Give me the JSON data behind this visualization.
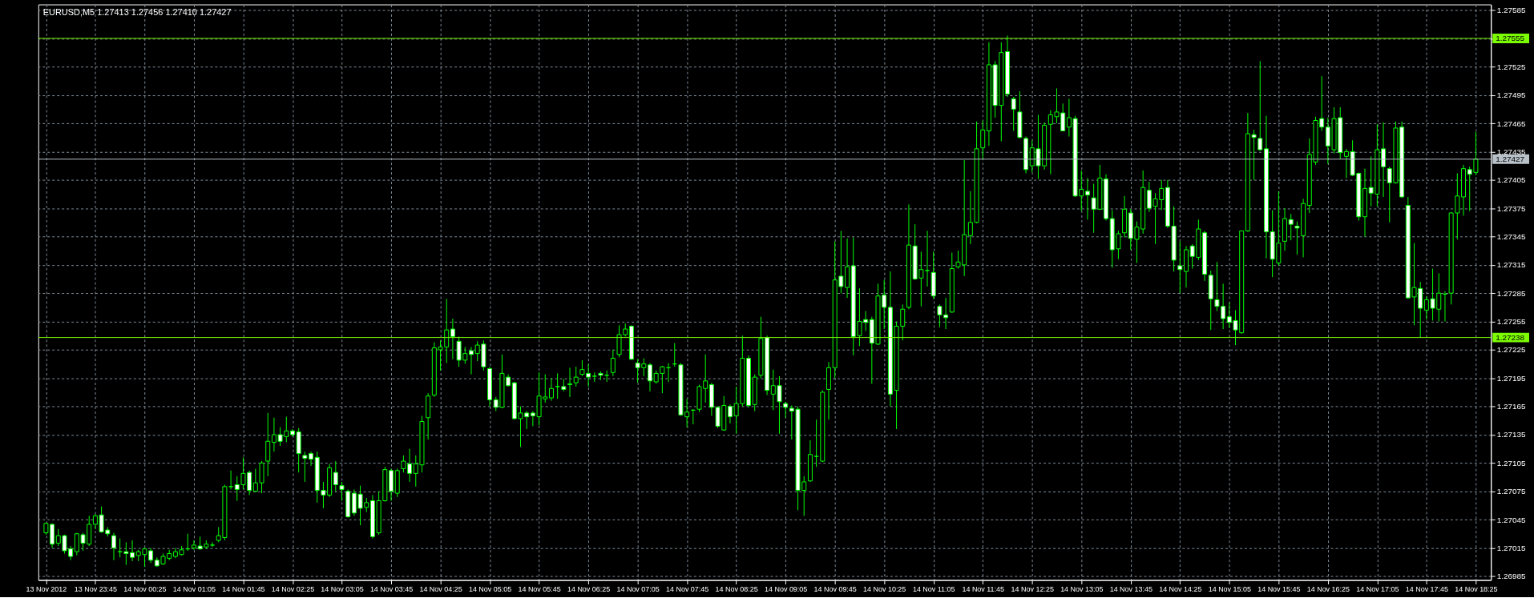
{
  "chart_data": {
    "type": "candlestick",
    "title": "EURUSD,M5 1.27413 1.27456 1.27410 1.27427",
    "x": [
      "2012-11-13T23:05",
      "2012-11-13T23:10",
      "2012-11-13T23:15",
      "2012-11-13T23:20",
      "2012-11-13T23:25",
      "2012-11-13T23:30",
      "2012-11-13T23:35",
      "2012-11-13T23:40",
      "2012-11-13T23:45",
      "2012-11-13T23:50",
      "2012-11-13T23:55",
      "2012-11-14T00:00",
      "2012-11-14T00:05",
      "2012-11-14T00:10",
      "2012-11-14T00:15",
      "2012-11-14T00:20",
      "2012-11-14T00:25",
      "2012-11-14T00:30",
      "2012-11-14T00:35",
      "2012-11-14T00:40",
      "2012-11-14T00:45",
      "2012-11-14T00:50",
      "2012-11-14T00:55",
      "2012-11-14T01:00",
      "2012-11-14T01:05",
      "2012-11-14T01:10",
      "2012-11-14T01:15",
      "2012-11-14T01:20",
      "2012-11-14T01:25",
      "2012-11-14T01:30",
      "2012-11-14T01:35",
      "2012-11-14T01:40",
      "2012-11-14T01:45",
      "2012-11-14T01:50",
      "2012-11-14T01:55",
      "2012-11-14T02:00",
      "2012-11-14T02:05",
      "2012-11-14T02:10",
      "2012-11-14T02:15",
      "2012-11-14T02:20",
      "2012-11-14T02:25",
      "2012-11-14T02:30",
      "2012-11-14T02:35",
      "2012-11-14T02:40",
      "2012-11-14T02:45",
      "2012-11-14T02:50",
      "2012-11-14T02:55",
      "2012-11-14T03:00",
      "2012-11-14T03:05",
      "2012-11-14T03:10",
      "2012-11-14T03:15",
      "2012-11-14T03:20",
      "2012-11-14T03:25",
      "2012-11-14T03:30",
      "2012-11-14T03:35",
      "2012-11-14T03:40",
      "2012-11-14T03:45",
      "2012-11-14T03:50",
      "2012-11-14T03:55",
      "2012-11-14T04:00",
      "2012-11-14T04:05",
      "2012-11-14T04:10",
      "2012-11-14T04:15",
      "2012-11-14T04:20",
      "2012-11-14T04:25",
      "2012-11-14T04:30",
      "2012-11-14T04:35",
      "2012-11-14T04:40",
      "2012-11-14T04:45",
      "2012-11-14T04:50",
      "2012-11-14T04:55",
      "2012-11-14T05:00",
      "2012-11-14T05:05",
      "2012-11-14T05:10",
      "2012-11-14T05:15",
      "2012-11-14T05:20",
      "2012-11-14T05:25",
      "2012-11-14T05:30",
      "2012-11-14T05:35",
      "2012-11-14T05:40",
      "2012-11-14T05:45",
      "2012-11-14T05:50",
      "2012-11-14T05:55",
      "2012-11-14T06:00",
      "2012-11-14T06:05",
      "2012-11-14T06:10",
      "2012-11-14T06:15",
      "2012-11-14T06:20",
      "2012-11-14T06:25",
      "2012-11-14T06:30",
      "2012-11-14T06:35",
      "2012-11-14T06:40",
      "2012-11-14T06:45",
      "2012-11-14T06:50",
      "2012-11-14T06:55",
      "2012-11-14T07:00",
      "2012-11-14T07:05",
      "2012-11-14T07:10",
      "2012-11-14T07:15",
      "2012-11-14T07:20",
      "2012-11-14T07:25",
      "2012-11-14T07:30",
      "2012-11-14T07:35",
      "2012-11-14T07:40",
      "2012-11-14T07:45",
      "2012-11-14T07:50",
      "2012-11-14T07:55",
      "2012-11-14T08:00",
      "2012-11-14T08:05",
      "2012-11-14T08:10",
      "2012-11-14T08:15",
      "2012-11-14T08:20",
      "2012-11-14T08:25",
      "2012-11-14T08:30",
      "2012-11-14T08:35",
      "2012-11-14T08:40",
      "2012-11-14T08:45",
      "2012-11-14T08:50",
      "2012-11-14T08:55",
      "2012-11-14T09:00",
      "2012-11-14T09:05",
      "2012-11-14T09:10",
      "2012-11-14T09:15",
      "2012-11-14T09:20",
      "2012-11-14T09:25",
      "2012-11-14T09:30",
      "2012-11-14T09:35",
      "2012-11-14T09:40",
      "2012-11-14T09:45",
      "2012-11-14T09:50",
      "2012-11-14T09:55",
      "2012-11-14T10:00",
      "2012-11-14T10:05",
      "2012-11-14T10:10",
      "2012-11-14T10:15",
      "2012-11-14T10:20",
      "2012-11-14T10:25",
      "2012-11-14T10:30",
      "2012-11-14T10:35",
      "2012-11-14T10:40",
      "2012-11-14T10:45",
      "2012-11-14T10:50",
      "2012-11-14T10:55",
      "2012-11-14T11:00",
      "2012-11-14T11:05",
      "2012-11-14T11:10",
      "2012-11-14T11:15",
      "2012-11-14T11:20",
      "2012-11-14T11:25",
      "2012-11-14T11:30",
      "2012-11-14T11:35",
      "2012-11-14T11:40",
      "2012-11-14T11:45",
      "2012-11-14T11:50",
      "2012-11-14T11:55",
      "2012-11-14T12:00",
      "2012-11-14T12:05",
      "2012-11-14T12:10",
      "2012-11-14T12:15",
      "2012-11-14T12:20",
      "2012-11-14T12:25",
      "2012-11-14T12:30",
      "2012-11-14T12:35",
      "2012-11-14T12:40",
      "2012-11-14T12:45",
      "2012-11-14T12:50",
      "2012-11-14T12:55",
      "2012-11-14T13:00",
      "2012-11-14T13:05",
      "2012-11-14T13:10",
      "2012-11-14T13:15",
      "2012-11-14T13:20",
      "2012-11-14T13:25",
      "2012-11-14T13:30",
      "2012-11-14T13:35",
      "2012-11-14T13:40",
      "2012-11-14T13:45",
      "2012-11-14T13:50",
      "2012-11-14T13:55",
      "2012-11-14T14:00",
      "2012-11-14T14:05",
      "2012-11-14T14:10",
      "2012-11-14T14:15",
      "2012-11-14T14:20",
      "2012-11-14T14:25",
      "2012-11-14T14:30",
      "2012-11-14T14:35",
      "2012-11-14T14:40",
      "2012-11-14T14:45",
      "2012-11-14T14:50",
      "2012-11-14T14:55",
      "2012-11-14T15:00",
      "2012-11-14T15:05",
      "2012-11-14T15:10",
      "2012-11-14T15:15",
      "2012-11-14T15:20",
      "2012-11-14T15:25",
      "2012-11-14T15:30",
      "2012-11-14T15:35",
      "2012-11-14T15:40",
      "2012-11-14T15:45",
      "2012-11-14T15:50",
      "2012-11-14T15:55",
      "2012-11-14T16:00",
      "2012-11-14T16:05",
      "2012-11-14T16:10",
      "2012-11-14T16:15",
      "2012-11-14T16:20",
      "2012-11-14T16:25",
      "2012-11-14T16:30",
      "2012-11-14T16:35",
      "2012-11-14T16:40",
      "2012-11-14T16:45",
      "2012-11-14T16:50",
      "2012-11-14T16:55",
      "2012-11-14T17:00",
      "2012-11-14T17:05",
      "2012-11-14T17:10",
      "2012-11-14T17:15",
      "2012-11-14T17:20",
      "2012-11-14T17:25",
      "2012-11-14T17:30",
      "2012-11-14T17:35",
      "2012-11-14T17:40",
      "2012-11-14T17:45",
      "2012-11-14T17:50",
      "2012-11-14T17:55",
      "2012-11-14T18:00",
      "2012-11-14T18:05",
      "2012-11-14T18:10",
      "2012-11-14T18:15",
      "2012-11-14T18:20",
      "2012-11-14T18:25"
    ],
    "series": [
      {
        "color": "#00ff00",
        "ohlc": [
          [
            1.27031,
            1.27042,
            1.27029,
            1.27041
          ],
          [
            1.2704,
            1.27041,
            1.27015,
            1.27019
          ],
          [
            1.2702,
            1.27035,
            1.27017,
            1.27028
          ],
          [
            1.27028,
            1.27029,
            1.27009,
            1.27012
          ],
          [
            1.27014,
            1.27017,
            1.27002,
            1.27006
          ],
          [
            1.27011,
            1.27031,
            1.27007,
            1.2703
          ],
          [
            1.27029,
            1.27031,
            1.27012,
            1.2702
          ],
          [
            1.27019,
            1.27049,
            1.27017,
            1.2704
          ],
          [
            1.2704,
            1.27051,
            1.27035,
            1.27049
          ],
          [
            1.2705,
            1.27059,
            1.27031,
            1.27032
          ],
          [
            1.27034,
            1.27037,
            1.27027,
            1.2703
          ],
          [
            1.27028,
            1.27031,
            1.27002,
            1.27015
          ],
          [
            1.27011,
            1.27025,
            1.27005,
            1.27011
          ],
          [
            1.27011,
            1.27021,
            1.26997,
            1.27009
          ],
          [
            1.2701,
            1.27023,
            1.27001,
            1.27005
          ],
          [
            1.27007,
            1.27013,
            1.27001,
            1.27011
          ],
          [
            1.27008,
            1.27015,
            1.26995,
            1.27014
          ],
          [
            1.27012,
            1.27015,
            1.26999,
            1.27002
          ],
          [
            1.27002,
            1.27005,
            1.26995,
            1.26996
          ],
          [
            1.26998,
            1.27009,
            1.26997,
            1.27006
          ],
          [
            1.27004,
            1.27013,
            1.27002,
            1.27009
          ],
          [
            1.27006,
            1.27015,
            1.27004,
            1.27011
          ],
          [
            1.27008,
            1.27017,
            1.27007,
            1.27013
          ],
          [
            1.27014,
            1.2703,
            1.27012,
            1.27014
          ],
          [
            1.27015,
            1.27023,
            1.27013,
            1.27018
          ],
          [
            1.27017,
            1.27027,
            1.27013,
            1.27014
          ],
          [
            1.27016,
            1.27023,
            1.27014,
            1.27019
          ],
          [
            1.27018,
            1.27021,
            1.27016,
            1.27018
          ],
          [
            1.27023,
            1.27037,
            1.27021,
            1.27028
          ],
          [
            1.27026,
            1.27082,
            1.27023,
            1.2708
          ],
          [
            1.2708,
            1.27097,
            1.27077,
            1.2708
          ],
          [
            1.27082,
            1.27091,
            1.27065,
            1.27077
          ],
          [
            1.27082,
            1.27111,
            1.27077,
            1.27094
          ],
          [
            1.27095,
            1.27097,
            1.27071,
            1.27076
          ],
          [
            1.27075,
            1.27099,
            1.27074,
            1.27084
          ],
          [
            1.27084,
            1.27107,
            1.27073,
            1.27105
          ],
          [
            1.27107,
            1.27158,
            1.27091,
            1.27128
          ],
          [
            1.27127,
            1.27153,
            1.27117,
            1.27135
          ],
          [
            1.27135,
            1.27143,
            1.27123,
            1.27128
          ],
          [
            1.27133,
            1.27154,
            1.27127,
            1.27139
          ],
          [
            1.27139,
            1.27141,
            1.27133,
            1.27135
          ],
          [
            1.27138,
            1.27142,
            1.27095,
            1.27115
          ],
          [
            1.27113,
            1.27117,
            1.27085,
            1.2711
          ],
          [
            1.27115,
            1.27117,
            1.27102,
            1.27109
          ],
          [
            1.27111,
            1.27117,
            1.27063,
            1.27076
          ],
          [
            1.27076,
            1.27085,
            1.27057,
            1.27071
          ],
          [
            1.27071,
            1.27104,
            1.27069,
            1.271
          ],
          [
            1.27095,
            1.27107,
            1.27075,
            1.27082
          ],
          [
            1.27081,
            1.27085,
            1.27065,
            1.27077
          ],
          [
            1.27075,
            1.27077,
            1.27047,
            1.27048
          ],
          [
            1.27073,
            1.27077,
            1.27049,
            1.27052
          ],
          [
            1.27072,
            1.27081,
            1.27039,
            1.27057
          ],
          [
            1.27058,
            1.27068,
            1.27053,
            1.27063
          ],
          [
            1.27065,
            1.27071,
            1.27025,
            1.27027
          ],
          [
            1.27031,
            1.27075,
            1.27029,
            1.27065
          ],
          [
            1.27065,
            1.27101,
            1.27064,
            1.27098
          ],
          [
            1.27097,
            1.27099,
            1.27065,
            1.27075
          ],
          [
            1.27073,
            1.27099,
            1.27069,
            1.27097
          ],
          [
            1.27099,
            1.27113,
            1.27095,
            1.27107
          ],
          [
            1.27104,
            1.2712,
            1.27085,
            1.27094
          ],
          [
            1.27094,
            1.27113,
            1.2708,
            1.27104
          ],
          [
            1.27103,
            1.27155,
            1.27095,
            1.27149
          ],
          [
            1.27153,
            1.27179,
            1.2713,
            1.27176
          ],
          [
            1.27177,
            1.27233,
            1.27175,
            1.27227
          ],
          [
            1.27225,
            1.27235,
            1.27203,
            1.27228
          ],
          [
            1.27228,
            1.27279,
            1.27211,
            1.27246
          ],
          [
            1.27247,
            1.27258,
            1.27215,
            1.27239
          ],
          [
            1.27234,
            1.27239,
            1.27207,
            1.27214
          ],
          [
            1.27214,
            1.27228,
            1.2721,
            1.27221
          ],
          [
            1.27224,
            1.27228,
            1.27199,
            1.2722
          ],
          [
            1.27221,
            1.27234,
            1.27213,
            1.2723
          ],
          [
            1.27231,
            1.27235,
            1.27203,
            1.27207
          ],
          [
            1.27205,
            1.27207,
            1.27165,
            1.27172
          ],
          [
            1.27172,
            1.27175,
            1.2716,
            1.27164
          ],
          [
            1.27164,
            1.2722,
            1.27163,
            1.272
          ],
          [
            1.27196,
            1.27199,
            1.27186,
            1.27187
          ],
          [
            1.2719,
            1.27191,
            1.27151,
            1.27152
          ],
          [
            1.27152,
            1.27165,
            1.27122,
            1.27158
          ],
          [
            1.27158,
            1.2716,
            1.27141,
            1.27154
          ],
          [
            1.27158,
            1.2716,
            1.27144,
            1.27155
          ],
          [
            1.27154,
            1.27201,
            1.27145,
            1.27176
          ],
          [
            1.27173,
            1.27199,
            1.27169,
            1.27175
          ],
          [
            1.27174,
            1.27195,
            1.27171,
            1.27184
          ],
          [
            1.27186,
            1.272,
            1.27173,
            1.27186
          ],
          [
            1.27186,
            1.27194,
            1.27181,
            1.27183
          ],
          [
            1.27188,
            1.27206,
            1.27175,
            1.27189
          ],
          [
            1.2719,
            1.27207,
            1.27186,
            1.27196
          ],
          [
            1.27199,
            1.27214,
            1.27197,
            1.27204
          ],
          [
            1.272,
            1.2721,
            1.27186,
            1.27196
          ],
          [
            1.27197,
            1.27201,
            1.27191,
            1.27197
          ],
          [
            1.272,
            1.27202,
            1.27193,
            1.27198
          ],
          [
            1.27198,
            1.27203,
            1.27191,
            1.27198
          ],
          [
            1.27201,
            1.27225,
            1.27197,
            1.27216
          ],
          [
            1.2722,
            1.27251,
            1.27217,
            1.27241
          ],
          [
            1.27241,
            1.27253,
            1.27239,
            1.27247
          ],
          [
            1.2725,
            1.27251,
            1.27214,
            1.27215
          ],
          [
            1.27211,
            1.27215,
            1.2719,
            1.27206
          ],
          [
            1.27206,
            1.27216,
            1.27197,
            1.2721
          ],
          [
            1.27209,
            1.27211,
            1.27181,
            1.27192
          ],
          [
            1.27191,
            1.27203,
            1.27189,
            1.272
          ],
          [
            1.272,
            1.27208,
            1.27179,
            1.27207
          ],
          [
            1.27206,
            1.27211,
            1.27191,
            1.27206
          ],
          [
            1.2721,
            1.27232,
            1.27207,
            1.2721
          ],
          [
            1.27209,
            1.27211,
            1.27155,
            1.27156
          ],
          [
            1.27154,
            1.27173,
            1.27143,
            1.27159
          ],
          [
            1.27161,
            1.27162,
            1.27146,
            1.27161
          ],
          [
            1.27162,
            1.27188,
            1.27159,
            1.27186
          ],
          [
            1.27184,
            1.2722,
            1.27169,
            1.27192
          ],
          [
            1.27188,
            1.2719,
            1.27155,
            1.27164
          ],
          [
            1.27164,
            1.27165,
            1.27142,
            1.27144
          ],
          [
            1.2714,
            1.27176,
            1.27139,
            1.27166
          ],
          [
            1.27165,
            1.27167,
            1.27147,
            1.27154
          ],
          [
            1.27155,
            1.27186,
            1.27136,
            1.27168
          ],
          [
            1.27168,
            1.2724,
            1.27165,
            1.27216
          ],
          [
            1.27216,
            1.27219,
            1.27164,
            1.27166
          ],
          [
            1.27167,
            1.27199,
            1.2716,
            1.27196
          ],
          [
            1.27198,
            1.2726,
            1.27195,
            1.27237
          ],
          [
            1.27238,
            1.2724,
            1.27177,
            1.27182
          ],
          [
            1.27178,
            1.27204,
            1.27161,
            1.27187
          ],
          [
            1.27187,
            1.27197,
            1.27136,
            1.2717
          ],
          [
            1.27168,
            1.2717,
            1.27153,
            1.27164
          ],
          [
            1.27163,
            1.27166,
            1.2713,
            1.2716
          ],
          [
            1.27162,
            1.27165,
            1.27055,
            1.27076
          ],
          [
            1.27076,
            1.27091,
            1.27049,
            1.27085
          ],
          [
            1.27086,
            1.27129,
            1.27085,
            1.27114
          ],
          [
            1.27112,
            1.27151,
            1.27101,
            1.27112
          ],
          [
            1.27107,
            1.27182,
            1.27106,
            1.2718
          ],
          [
            1.27183,
            1.27212,
            1.27151,
            1.27206
          ],
          [
            1.27206,
            1.2734,
            1.27195,
            1.27299
          ],
          [
            1.27303,
            1.27351,
            1.27285,
            1.27292
          ],
          [
            1.27291,
            1.27343,
            1.2728,
            1.27313
          ],
          [
            1.27314,
            1.27344,
            1.27219,
            1.27239
          ],
          [
            1.2724,
            1.2729,
            1.27229,
            1.27255
          ],
          [
            1.27257,
            1.27266,
            1.27245,
            1.27254
          ],
          [
            1.27257,
            1.2726,
            1.27189,
            1.27232
          ],
          [
            1.27231,
            1.27295,
            1.2723,
            1.27282
          ],
          [
            1.27283,
            1.27299,
            1.27247,
            1.2727
          ],
          [
            1.2727,
            1.27308,
            1.27165,
            1.27178
          ],
          [
            1.27182,
            1.27255,
            1.27141,
            1.2725
          ],
          [
            1.2725,
            1.27273,
            1.27235,
            1.27268
          ],
          [
            1.2727,
            1.27379,
            1.27268,
            1.27336
          ],
          [
            1.27335,
            1.27358,
            1.27299,
            1.273
          ],
          [
            1.27301,
            1.27329,
            1.27271,
            1.2731
          ],
          [
            1.27309,
            1.27351,
            1.27292,
            1.27309
          ],
          [
            1.27307,
            1.27329,
            1.27279,
            1.27282
          ],
          [
            1.27271,
            1.27273,
            1.27249,
            1.27262
          ],
          [
            1.27262,
            1.2728,
            1.27247,
            1.27259
          ],
          [
            1.27265,
            1.27328,
            1.27264,
            1.27311
          ],
          [
            1.27313,
            1.2733,
            1.27311,
            1.27318
          ],
          [
            1.27315,
            1.27426,
            1.27303,
            1.27347
          ],
          [
            1.27346,
            1.27393,
            1.27337,
            1.2736
          ],
          [
            1.2736,
            1.27467,
            1.27359,
            1.27438
          ],
          [
            1.27439,
            1.27468,
            1.27427,
            1.27458
          ],
          [
            1.27457,
            1.27551,
            1.27441,
            1.27527
          ],
          [
            1.27527,
            1.27531,
            1.27471,
            1.27484
          ],
          [
            1.27484,
            1.27551,
            1.27446,
            1.2754
          ],
          [
            1.27541,
            1.27558,
            1.27493,
            1.27496
          ],
          [
            1.27491,
            1.27493,
            1.27457,
            1.2748
          ],
          [
            1.27477,
            1.27499,
            1.27449,
            1.2745
          ],
          [
            1.27449,
            1.27451,
            1.27412,
            1.27416
          ],
          [
            1.2742,
            1.27447,
            1.27413,
            1.27439
          ],
          [
            1.27438,
            1.27474,
            1.27406,
            1.2742
          ],
          [
            1.2742,
            1.27466,
            1.27416,
            1.27463
          ],
          [
            1.27464,
            1.27479,
            1.27411,
            1.27474
          ],
          [
            1.27472,
            1.27502,
            1.27465,
            1.27477
          ],
          [
            1.27476,
            1.27486,
            1.27457,
            1.27457
          ],
          [
            1.27461,
            1.27491,
            1.27451,
            1.27471
          ],
          [
            1.2747,
            1.27473,
            1.27387,
            1.27388
          ],
          [
            1.27388,
            1.27415,
            1.27372,
            1.27395
          ],
          [
            1.27393,
            1.27407,
            1.27363,
            1.27389
          ],
          [
            1.27386,
            1.27401,
            1.27349,
            1.27374
          ],
          [
            1.27374,
            1.27421,
            1.27373,
            1.27407
          ],
          [
            1.27406,
            1.27411,
            1.27362,
            1.27364
          ],
          [
            1.27364,
            1.27373,
            1.27312,
            1.27331
          ],
          [
            1.27332,
            1.27351,
            1.27321,
            1.27348
          ],
          [
            1.27349,
            1.27388,
            1.27344,
            1.27374
          ],
          [
            1.2737,
            1.27374,
            1.27331,
            1.27343
          ],
          [
            1.27342,
            1.27361,
            1.27317,
            1.27355
          ],
          [
            1.27353,
            1.27415,
            1.27348,
            1.27397
          ],
          [
            1.27394,
            1.27403,
            1.27371,
            1.27375
          ],
          [
            1.27377,
            1.27391,
            1.27337,
            1.27385
          ],
          [
            1.27384,
            1.27405,
            1.27373,
            1.27396
          ],
          [
            1.27397,
            1.27405,
            1.27354,
            1.27356
          ],
          [
            1.27356,
            1.27377,
            1.27308,
            1.2732
          ],
          [
            1.27314,
            1.2734,
            1.27285,
            1.2731
          ],
          [
            1.27308,
            1.27335,
            1.27291,
            1.27331
          ],
          [
            1.27335,
            1.27337,
            1.27311,
            1.27324
          ],
          [
            1.27323,
            1.27363,
            1.2732,
            1.27353
          ],
          [
            1.27349,
            1.27351,
            1.27298,
            1.27305
          ],
          [
            1.27304,
            1.27309,
            1.27246,
            1.27279
          ],
          [
            1.27278,
            1.27318,
            1.27266,
            1.27271
          ],
          [
            1.27271,
            1.27295,
            1.27247,
            1.27258
          ],
          [
            1.2726,
            1.27275,
            1.27248,
            1.27254
          ],
          [
            1.27256,
            1.27267,
            1.2723,
            1.27246
          ],
          [
            1.27243,
            1.27351,
            1.27242,
            1.27351
          ],
          [
            1.27351,
            1.27476,
            1.2735,
            1.27454
          ],
          [
            1.27453,
            1.27458,
            1.27405,
            1.2745
          ],
          [
            1.27449,
            1.27531,
            1.27436,
            1.27437
          ],
          [
            1.27438,
            1.27473,
            1.27322,
            1.2735
          ],
          [
            1.2735,
            1.27373,
            1.27302,
            1.27321
          ],
          [
            1.27317,
            1.27393,
            1.27314,
            1.27338
          ],
          [
            1.2734,
            1.27375,
            1.2733,
            1.27364
          ],
          [
            1.27363,
            1.27369,
            1.27341,
            1.27358
          ],
          [
            1.27356,
            1.27361,
            1.27326,
            1.27354
          ],
          [
            1.27346,
            1.27385,
            1.27323,
            1.2738
          ],
          [
            1.27378,
            1.27449,
            1.2737,
            1.27432
          ],
          [
            1.27424,
            1.27472,
            1.27421,
            1.27468
          ],
          [
            1.2747,
            1.27515,
            1.27457,
            1.27461
          ],
          [
            1.27461,
            1.27471,
            1.27422,
            1.27441
          ],
          [
            1.27437,
            1.27482,
            1.27433,
            1.2747
          ],
          [
            1.27471,
            1.27482,
            1.27427,
            1.27434
          ],
          [
            1.2743,
            1.27438,
            1.27407,
            1.27435
          ],
          [
            1.27435,
            1.27447,
            1.27409,
            1.2741
          ],
          [
            1.27412,
            1.27413,
            1.27362,
            1.27366
          ],
          [
            1.27366,
            1.27417,
            1.27345,
            1.27396
          ],
          [
            1.27397,
            1.2743,
            1.27377,
            1.27391
          ],
          [
            1.2739,
            1.27464,
            1.27377,
            1.27437
          ],
          [
            1.27438,
            1.27466,
            1.27387,
            1.27419
          ],
          [
            1.27417,
            1.27419,
            1.2736,
            1.27402
          ],
          [
            1.27402,
            1.27467,
            1.27401,
            1.2746
          ],
          [
            1.27461,
            1.27467,
            1.27386,
            1.27387
          ],
          [
            1.27378,
            1.27387,
            1.27279,
            1.2728
          ],
          [
            1.27281,
            1.27338,
            1.27251,
            1.27291
          ],
          [
            1.2729,
            1.27297,
            1.27238,
            1.27269
          ],
          [
            1.27267,
            1.27282,
            1.27257,
            1.27278
          ],
          [
            1.27279,
            1.27311,
            1.27256,
            1.27269
          ],
          [
            1.27268,
            1.27306,
            1.27255,
            1.27285
          ],
          [
            1.27284,
            1.27287,
            1.27255,
            1.27284
          ],
          [
            1.27285,
            1.27371,
            1.27273,
            1.2737
          ],
          [
            1.2737,
            1.27412,
            1.27342,
            1.27388
          ],
          [
            1.27387,
            1.27421,
            1.27367,
            1.27417
          ],
          [
            1.27416,
            1.27419,
            1.27372,
            1.27411
          ],
          [
            1.27413,
            1.27456,
            1.2741,
            1.27427
          ]
        ]
      }
    ],
    "xlim": [
      "2012-11-13T23:02",
      "2012-11-14T18:34"
    ],
    "xticks": [
      {
        "value": "2012-11-13T23:05",
        "label": "13 Nov 2012"
      },
      {
        "value": "2012-11-13T23:45",
        "label": "13 Nov 23:45"
      },
      {
        "value": "2012-11-14T00:25",
        "label": "14 Nov 00:25"
      },
      {
        "value": "2012-11-14T01:05",
        "label": "14 Nov 01:05"
      },
      {
        "value": "2012-11-14T01:45",
        "label": "14 Nov 01:45"
      },
      {
        "value": "2012-11-14T02:25",
        "label": "14 Nov 02:25"
      },
      {
        "value": "2012-11-14T03:05",
        "label": "14 Nov 03:05"
      },
      {
        "value": "2012-11-14T03:45",
        "label": "14 Nov 03:45"
      },
      {
        "value": "2012-11-14T04:25",
        "label": "14 Nov 04:25"
      },
      {
        "value": "2012-11-14T05:05",
        "label": "14 Nov 05:05"
      },
      {
        "value": "2012-11-14T05:45",
        "label": "14 Nov 05:45"
      },
      {
        "value": "2012-11-14T06:25",
        "label": "14 Nov 06:25"
      },
      {
        "value": "2012-11-14T07:05",
        "label": "14 Nov 07:05"
      },
      {
        "value": "2012-11-14T07:45",
        "label": "14 Nov 07:45"
      },
      {
        "value": "2012-11-14T08:25",
        "label": "14 Nov 08:25"
      },
      {
        "value": "2012-11-14T09:05",
        "label": "14 Nov 09:05"
      },
      {
        "value": "2012-11-14T09:45",
        "label": "14 Nov 09:45"
      },
      {
        "value": "2012-11-14T10:25",
        "label": "14 Nov 10:25"
      },
      {
        "value": "2012-11-14T11:05",
        "label": "14 Nov 11:05"
      },
      {
        "value": "2012-11-14T11:45",
        "label": "14 Nov 11:45"
      },
      {
        "value": "2012-11-14T12:25",
        "label": "14 Nov 12:25"
      },
      {
        "value": "2012-11-14T13:05",
        "label": "14 Nov 13:05"
      },
      {
        "value": "2012-11-14T13:45",
        "label": "14 Nov 13:45"
      },
      {
        "value": "2012-11-14T14:25",
        "label": "14 Nov 14:25"
      },
      {
        "value": "2012-11-14T15:05",
        "label": "14 Nov 15:05"
      },
      {
        "value": "2012-11-14T15:45",
        "label": "14 Nov 15:45"
      },
      {
        "value": "2012-11-14T16:25",
        "label": "14 Nov 16:25"
      },
      {
        "value": "2012-11-14T17:05",
        "label": "14 Nov 17:05"
      },
      {
        "value": "2012-11-14T17:45",
        "label": "14 Nov 17:45"
      },
      {
        "value": "2012-11-14T18:25",
        "label": "14 Nov 18:25"
      }
    ],
    "ylim": [
      1.26981,
      1.27591
    ],
    "yticks": [
      1.26985,
      1.27015,
      1.27045,
      1.27075,
      1.27105,
      1.27135,
      1.27165,
      1.27195,
      1.27225,
      1.27255,
      1.27285,
      1.27315,
      1.27345,
      1.27375,
      1.27405,
      1.27435,
      1.27465,
      1.27495,
      1.27525,
      {
        "value": 1.27555,
        "label": null
      },
      1.27585
    ],
    "ref_lines": [
      {
        "axis": "y",
        "value": 1.27555,
        "label": "1.27555",
        "color": "#7cfc00"
      },
      {
        "axis": "y",
        "value": 1.27238,
        "label": "1.27238",
        "color": "#7cfc00"
      },
      {
        "axis": "y",
        "value": 1.27427,
        "label": "1.27427",
        "color": "#b8c0c8"
      }
    ],
    "grid": true
  }
}
